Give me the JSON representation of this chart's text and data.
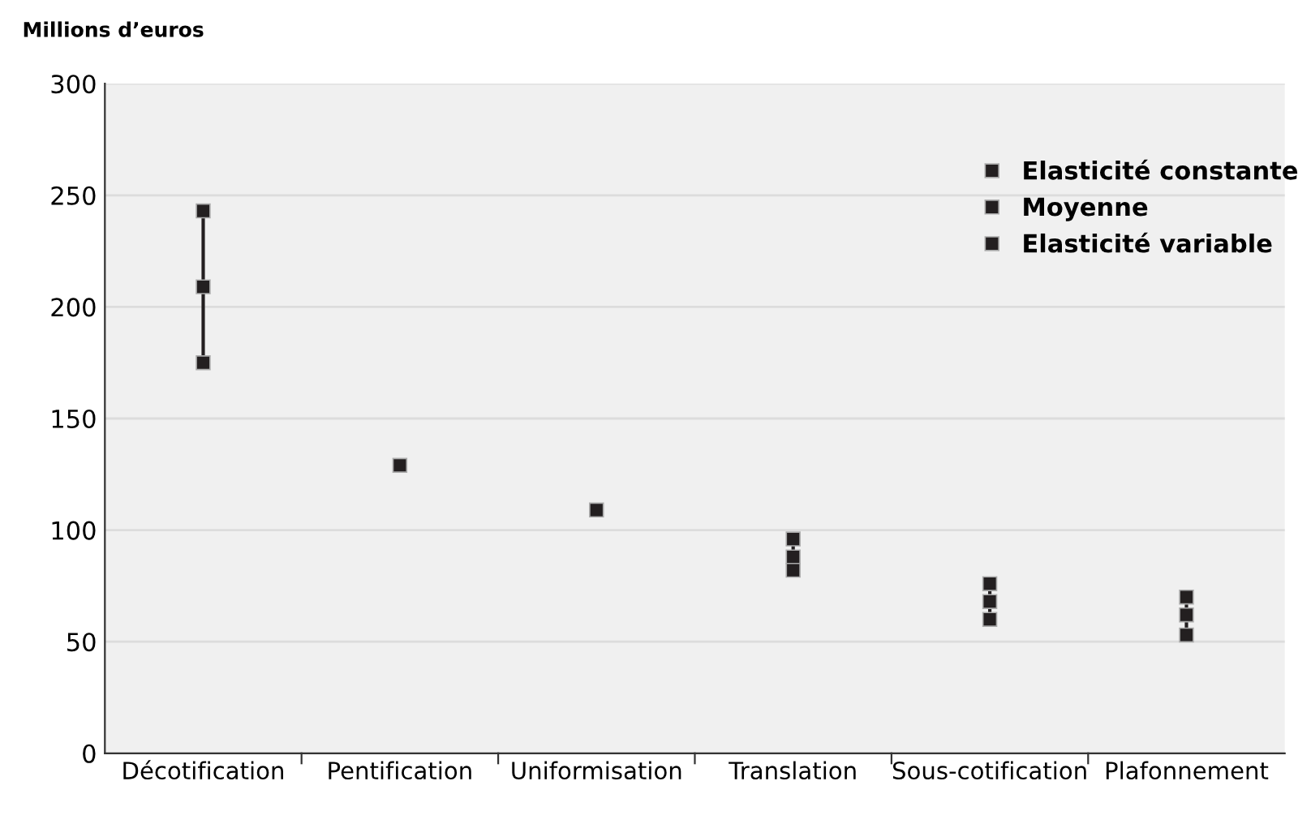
{
  "chart_data": {
    "type": "scatter",
    "ylabel": "Millions d’euros",
    "categories": [
      "Décotification",
      "Pentification",
      "Uniformisation",
      "Translation",
      "Sous-cotification",
      "Plafonnement"
    ],
    "series": [
      {
        "name": "Elasticité constante",
        "color": "#231f20",
        "marker": "square",
        "values": [
          175,
          null,
          null,
          96,
          76,
          70
        ]
      },
      {
        "name": "Moyenne",
        "color": "#231f20",
        "marker": "square",
        "values": [
          209,
          129,
          109,
          88,
          68,
          62
        ]
      },
      {
        "name": "Elasticité variable",
        "color": "#231f20",
        "marker": "square",
        "values": [
          243,
          null,
          null,
          82,
          60,
          53
        ]
      }
    ],
    "ylim": [
      0,
      300
    ],
    "yticks": [
      0,
      50,
      100,
      150,
      200,
      250,
      300
    ],
    "grid": "y",
    "legend": "top right"
  }
}
